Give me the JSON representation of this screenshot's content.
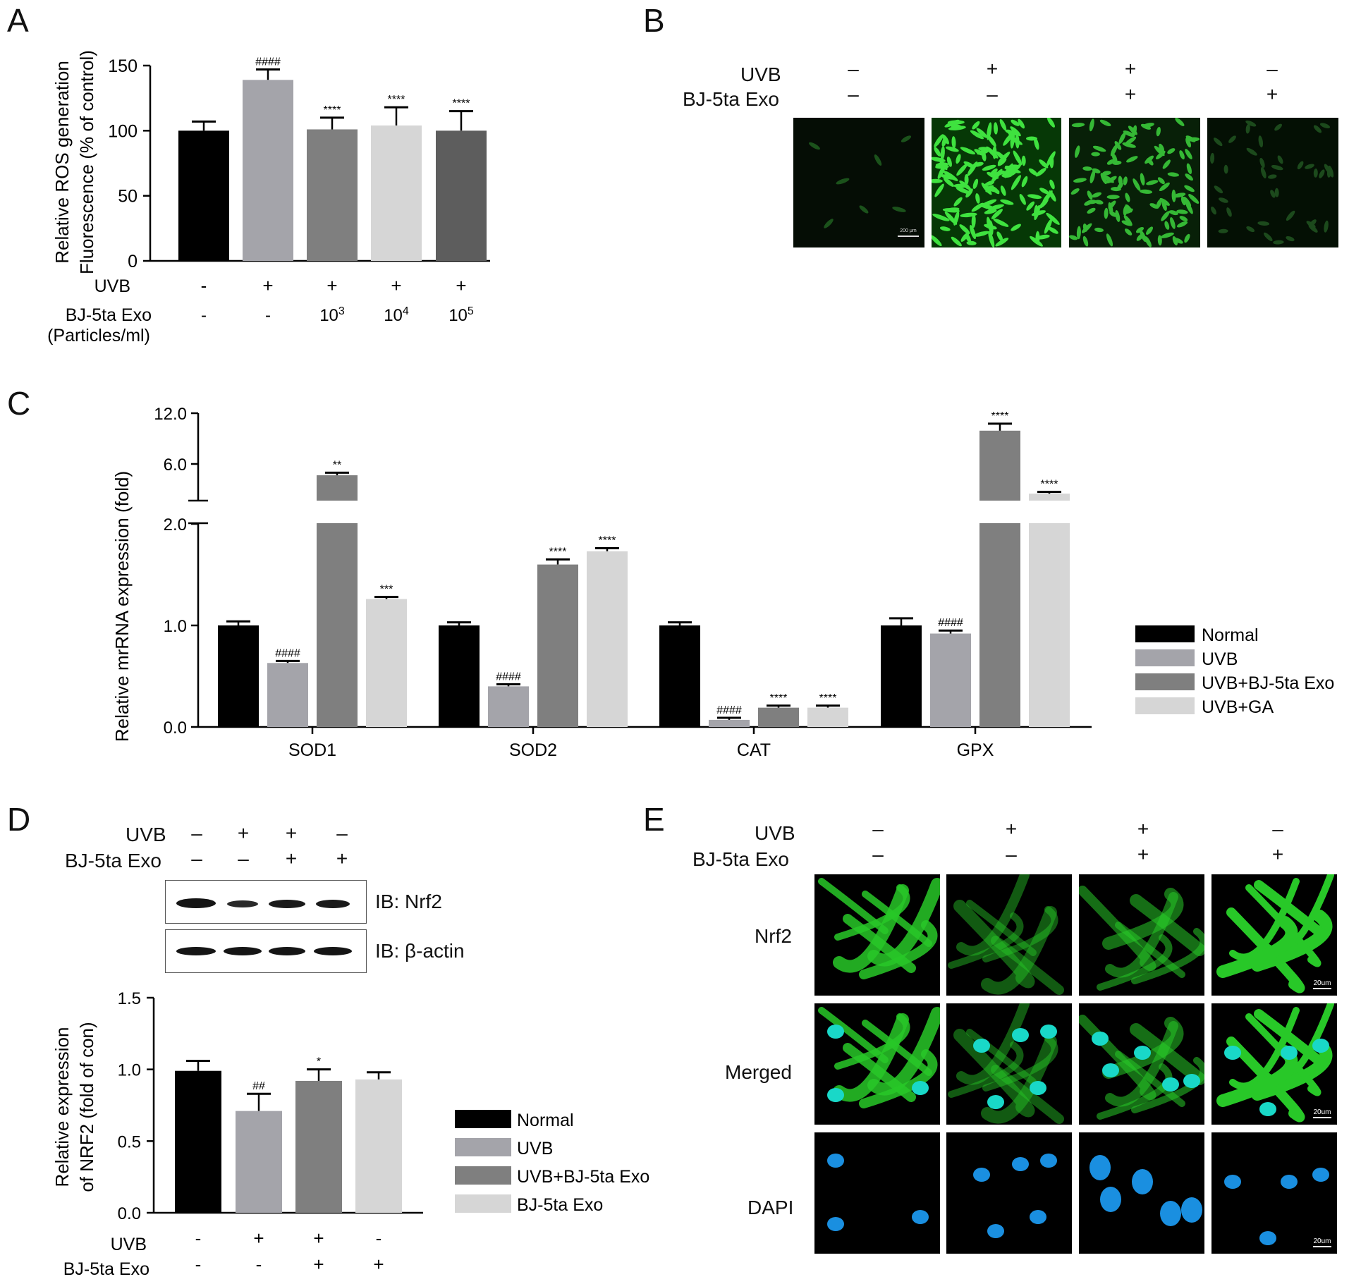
{
  "panel_letters": {
    "a": "A",
    "b": "B",
    "c": "C",
    "d": "D",
    "e": "E"
  },
  "chart_data": [
    {
      "id": "A",
      "type": "bar",
      "ylabel_line1": "Relative ROS generation",
      "ylabel_line2": "Fluorescence (% of control)",
      "ylim": [
        0,
        150
      ],
      "yticks": [
        "0",
        "50",
        "100",
        "150"
      ],
      "ytick_values": [
        0,
        50,
        100,
        150
      ],
      "values": [
        100,
        139,
        101,
        104,
        100
      ],
      "errors": [
        7,
        8,
        9,
        14,
        15
      ],
      "colors": [
        "#000000",
        "#a4a4aa",
        "#7f7f7f",
        "#d6d6d6",
        "#5d5d5d"
      ],
      "sig": [
        "",
        "####",
        "****",
        "****",
        "****"
      ],
      "row1_label": "UVB",
      "row1": [
        "-",
        "+",
        "+",
        "+",
        "+"
      ],
      "row2_label": "BJ-5ta Exo",
      "row2_sublabel": "(Particles/ml)",
      "row2": [
        {
          "base": "-",
          "sup": ""
        },
        {
          "base": "-",
          "sup": ""
        },
        {
          "base": "10",
          "sup": "3"
        },
        {
          "base": "10",
          "sup": "4"
        },
        {
          "base": "10",
          "sup": "5"
        }
      ]
    },
    {
      "id": "C",
      "type": "bar",
      "ylabel": "Relative mrRNA expression (fold)",
      "ylim_lower": [
        0,
        2.0
      ],
      "ylim_upper": [
        2.0,
        12.0
      ],
      "yticks_lower": [
        "0.0",
        "1.0",
        "2.0"
      ],
      "ytick_values_lower": [
        0,
        1,
        2
      ],
      "yticks_upper": [
        "6.0",
        "12.0"
      ],
      "ytick_values_upper": [
        6,
        12
      ],
      "categories": [
        "SOD1",
        "SOD2",
        "CAT",
        "GPX"
      ],
      "series": [
        {
          "name": "Normal",
          "color": "#000000",
          "values": [
            1.0,
            1.0,
            1.0,
            1.0
          ],
          "errors": [
            0.04,
            0.03,
            0.03,
            0.07
          ],
          "sig": [
            "",
            "",
            "",
            ""
          ]
        },
        {
          "name": "UVB",
          "color": "#a4a4aa",
          "values": [
            0.63,
            0.4,
            0.07,
            0.92
          ],
          "errors": [
            0.02,
            0.02,
            0.02,
            0.03
          ],
          "sig": [
            "####",
            "####",
            "####",
            "####"
          ]
        },
        {
          "name": "UVB+BJ-5ta Exo",
          "color": "#7f7f7f",
          "values": [
            4.9,
            1.6,
            0.19,
            10.0
          ],
          "errors": [
            0.3,
            0.05,
            0.02,
            0.8
          ],
          "sig": [
            "**",
            "****",
            "****",
            "****"
          ]
        },
        {
          "name": "UVB+GA",
          "color": "#d6d6d6",
          "values": [
            1.26,
            1.73,
            0.19,
            2.8
          ],
          "errors": [
            0.02,
            0.03,
            0.02,
            0.2
          ],
          "sig": [
            "***",
            "****",
            "****",
            "****"
          ]
        }
      ]
    },
    {
      "id": "D",
      "type": "bar",
      "ylabel_line1": "Relative expression",
      "ylabel_line2": "of NRF2 (fold of con)",
      "ylim": [
        0,
        1.5
      ],
      "yticks": [
        "0.0",
        "0.5",
        "1.0",
        "1.5"
      ],
      "ytick_values": [
        0,
        0.5,
        1.0,
        1.5
      ],
      "values": [
        0.99,
        0.71,
        0.92,
        0.93
      ],
      "errors": [
        0.07,
        0.12,
        0.08,
        0.05
      ],
      "series_names": [
        "Normal",
        "UVB",
        "UVB+BJ-5ta Exo",
        "BJ-5ta Exo"
      ],
      "colors": [
        "#000000",
        "#a4a4aa",
        "#7f7f7f",
        "#d6d6d6"
      ],
      "sig": [
        "",
        "##",
        "*",
        ""
      ],
      "row1_label": "UVB",
      "row1": [
        "-",
        "+",
        "+",
        "-"
      ],
      "row2_label": "BJ-5ta Exo",
      "row2": [
        "-",
        "-",
        "+",
        "+"
      ]
    }
  ],
  "panelB": {
    "row1_label": "UVB",
    "row1": [
      "–",
      "+",
      "+",
      "–"
    ],
    "row2_label": "BJ-5ta Exo",
    "row2": [
      "–",
      "–",
      "+",
      "+"
    ],
    "scale": "200 μm"
  },
  "panelD_blot": {
    "row1_label": "UVB",
    "row1": [
      "–",
      "+",
      "+",
      "–"
    ],
    "row2_label": "BJ-5ta Exo",
    "row2": [
      "–",
      "–",
      "+",
      "+"
    ],
    "blot1_label": "IB: Nrf2",
    "blot2_label": "IB: β-actin"
  },
  "panelE": {
    "row1_label": "UVB",
    "row1": [
      "–",
      "+",
      "+",
      "–"
    ],
    "row2_label": "BJ-5ta Exo",
    "row2": [
      "–",
      "–",
      "+",
      "+"
    ],
    "row_labels": [
      "Nrf2",
      "Merged",
      "DAPI"
    ],
    "scale": "20um"
  }
}
